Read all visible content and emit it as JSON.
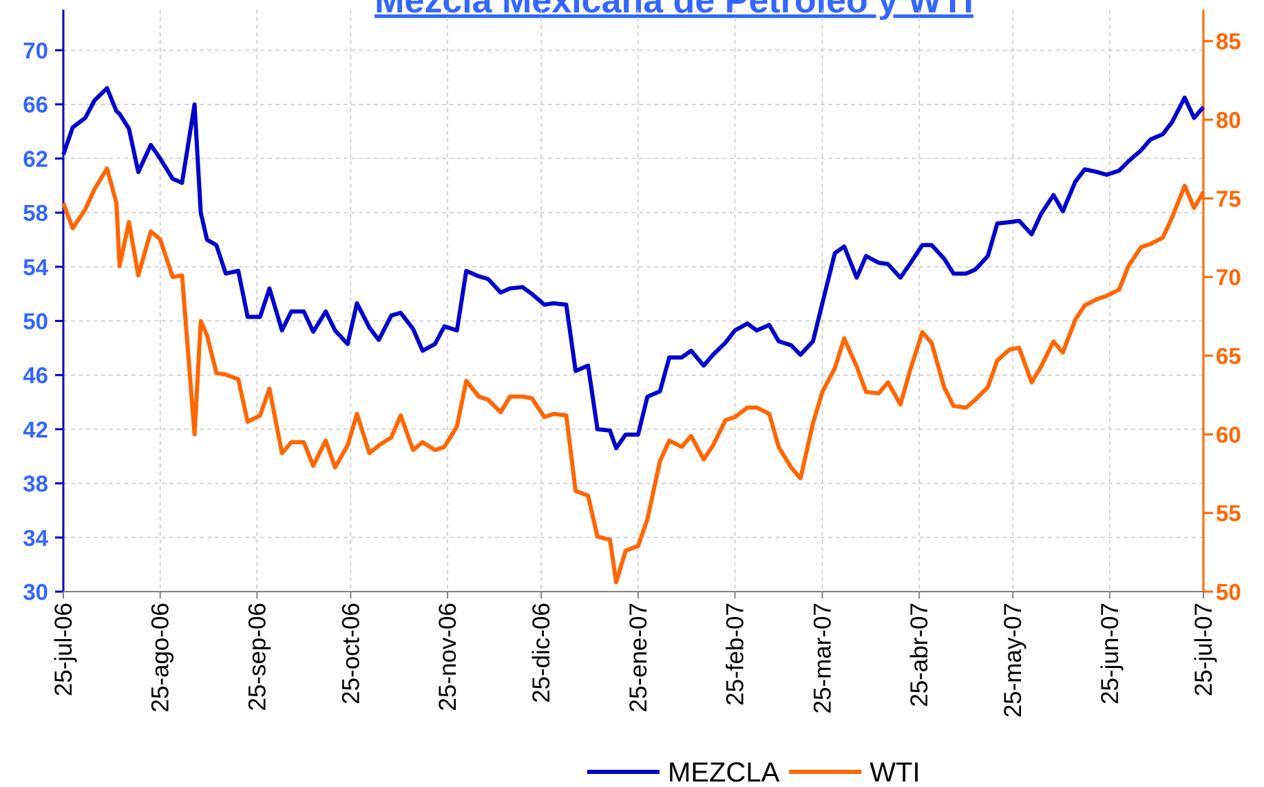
{
  "chart_data": {
    "type": "line",
    "title": "Mezcla Mexicana de Petróleo y WTI",
    "x": [
      "2006-07-25",
      "2006-07-28",
      "2006-08-01",
      "2006-08-04",
      "2006-08-08",
      "2006-08-11",
      "2006-08-12",
      "2006-08-15",
      "2006-08-18",
      "2006-08-22",
      "2006-08-25",
      "2006-08-29",
      "2006-09-01",
      "2006-09-05",
      "2006-09-07",
      "2006-09-09",
      "2006-09-12",
      "2006-09-15",
      "2006-09-19",
      "2006-09-22",
      "2006-09-26",
      "2006-09-29",
      "2006-10-03",
      "2006-10-06",
      "2006-10-10",
      "2006-10-13",
      "2006-10-17",
      "2006-10-20",
      "2006-10-24",
      "2006-10-27",
      "2006-10-31",
      "2006-11-03",
      "2006-11-07",
      "2006-11-10",
      "2006-11-14",
      "2006-11-17",
      "2006-11-21",
      "2006-11-24",
      "2006-11-28",
      "2006-12-01",
      "2006-12-05",
      "2006-12-08",
      "2006-12-12",
      "2006-12-15",
      "2006-12-19",
      "2006-12-22",
      "2006-12-26",
      "2006-12-29",
      "2007-01-02",
      "2007-01-05",
      "2007-01-09",
      "2007-01-12",
      "2007-01-16",
      "2007-01-18",
      "2007-01-21",
      "2007-01-25",
      "2007-01-28",
      "2007-02-01",
      "2007-02-04",
      "2007-02-08",
      "2007-02-11",
      "2007-02-15",
      "2007-02-18",
      "2007-02-22",
      "2007-02-25",
      "2007-03-01",
      "2007-03-04",
      "2007-03-08",
      "2007-03-11",
      "2007-03-15",
      "2007-03-18",
      "2007-03-22",
      "2007-03-25",
      "2007-03-29",
      "2007-04-01",
      "2007-04-05",
      "2007-04-08",
      "2007-04-12",
      "2007-04-15",
      "2007-04-19",
      "2007-04-22",
      "2007-04-26",
      "2007-04-29",
      "2007-05-03",
      "2007-05-06",
      "2007-05-10",
      "2007-05-13",
      "2007-05-17",
      "2007-05-20",
      "2007-05-24",
      "2007-05-27",
      "2007-05-31",
      "2007-06-03",
      "2007-06-07",
      "2007-06-10",
      "2007-06-14",
      "2007-06-17",
      "2007-06-21",
      "2007-06-24",
      "2007-06-28",
      "2007-07-01",
      "2007-07-05",
      "2007-07-08",
      "2007-07-12",
      "2007-07-15",
      "2007-07-19",
      "2007-07-22",
      "2007-07-25"
    ],
    "series": [
      {
        "name": "MEZCLA",
        "color": "#0000cc",
        "axis": "y",
        "values": [
          62.3,
          64.3,
          65,
          66.3,
          67.2,
          65.5,
          65.3,
          64.2,
          61,
          63,
          62,
          60.5,
          60.2,
          66,
          58,
          56,
          55.6,
          53.5,
          53.7,
          50.3,
          50.3,
          52.4,
          49.3,
          50.7,
          50.7,
          49.2,
          50.7,
          49.3,
          48.3,
          51.3,
          49.5,
          48.6,
          50.4,
          50.6,
          49.4,
          47.8,
          48.3,
          49.6,
          49.3,
          53.7,
          53.3,
          53.1,
          52.1,
          52.4,
          52.5,
          52,
          51.2,
          51.3,
          51.2,
          46.3,
          46.7,
          42,
          41.9,
          40.6,
          41.6,
          41.6,
          44.4,
          44.8,
          47.3,
          47.3,
          47.8,
          46.7,
          47.5,
          48.4,
          49.3,
          49.8,
          49.3,
          49.7,
          48.5,
          48.2,
          47.5,
          48.5,
          51.3,
          55,
          55.5,
          53.2,
          54.8,
          54.3,
          54.2,
          53.2,
          54.2,
          55.6,
          55.6,
          54.6,
          53.5,
          53.5,
          53.8,
          54.8,
          57.2,
          57.3,
          57.4,
          56.4,
          57.9,
          59.3,
          58.1,
          60.3,
          61.2,
          61,
          60.8,
          61.1,
          61.8,
          62.6,
          63.4,
          63.8,
          64.7,
          66.5,
          65,
          65.8
        ]
      },
      {
        "name": "WTI",
        "color": "#ff6600",
        "axis": "y2",
        "values": [
          74.7,
          73.1,
          74.3,
          75.6,
          76.9,
          74.7,
          70.7,
          73.5,
          70.1,
          72.9,
          72.4,
          70,
          70.1,
          60,
          67.2,
          66.3,
          63.9,
          63.8,
          63.5,
          60.8,
          61.2,
          62.9,
          58.8,
          59.5,
          59.5,
          58,
          59.6,
          57.9,
          59.3,
          61.3,
          58.8,
          59.3,
          59.8,
          61.2,
          59,
          59.5,
          59,
          59.2,
          60.5,
          63.4,
          62.4,
          62.2,
          61.4,
          62.4,
          62.4,
          62.3,
          61.1,
          61.3,
          61.2,
          56.4,
          56.1,
          53.5,
          53.3,
          50.6,
          52.6,
          52.9,
          54.6,
          58.3,
          59.6,
          59.2,
          59.9,
          58.4,
          59.3,
          60.9,
          61.1,
          61.7,
          61.7,
          61.3,
          59.2,
          57.9,
          57.2,
          60.7,
          62.7,
          64.2,
          66.1,
          64.3,
          62.7,
          62.6,
          63.3,
          61.9,
          64,
          66.5,
          65.8,
          63,
          61.8,
          61.7,
          62.2,
          63,
          64.7,
          65.4,
          65.5,
          63.3,
          64.3,
          65.9,
          65.2,
          67.3,
          68.2,
          68.6,
          68.8,
          69.2,
          70.7,
          71.9,
          72.1,
          72.5,
          73.8,
          75.8,
          74.4,
          75.4
        ]
      }
    ],
    "xlim": [
      "2006-07-25",
      "2007-07-25"
    ],
    "xticks": [
      {
        "value": "2006-07-25",
        "label": "25-jul-06"
      },
      {
        "value": "2006-08-25",
        "label": "25-ago-06"
      },
      {
        "value": "2006-09-25",
        "label": "25-sep-06"
      },
      {
        "value": "2006-10-25",
        "label": "25-oct-06"
      },
      {
        "value": "2006-11-25",
        "label": "25-nov-06"
      },
      {
        "value": "2006-12-25",
        "label": "25-dic-06"
      },
      {
        "value": "2007-01-25",
        "label": "25-ene-07"
      },
      {
        "value": "2007-02-25",
        "label": "25-feb-07"
      },
      {
        "value": "2007-03-25",
        "label": "25-mar-07"
      },
      {
        "value": "2007-04-25",
        "label": "25-abr-07"
      },
      {
        "value": "2007-05-25",
        "label": "25-may-07"
      },
      {
        "value": "2007-06-25",
        "label": "25-jun-07"
      },
      {
        "value": "2007-07-25",
        "label": "25-jul-07"
      }
    ],
    "ylim": [
      30,
      73
    ],
    "yticks": [
      30,
      34,
      38,
      42,
      46,
      50,
      54,
      58,
      62,
      66,
      70
    ],
    "y2lim": [
      50,
      87
    ],
    "y2ticks": [
      50,
      55,
      60,
      65,
      70,
      75,
      80,
      85
    ],
    "grid": true,
    "legend": "bottom"
  }
}
